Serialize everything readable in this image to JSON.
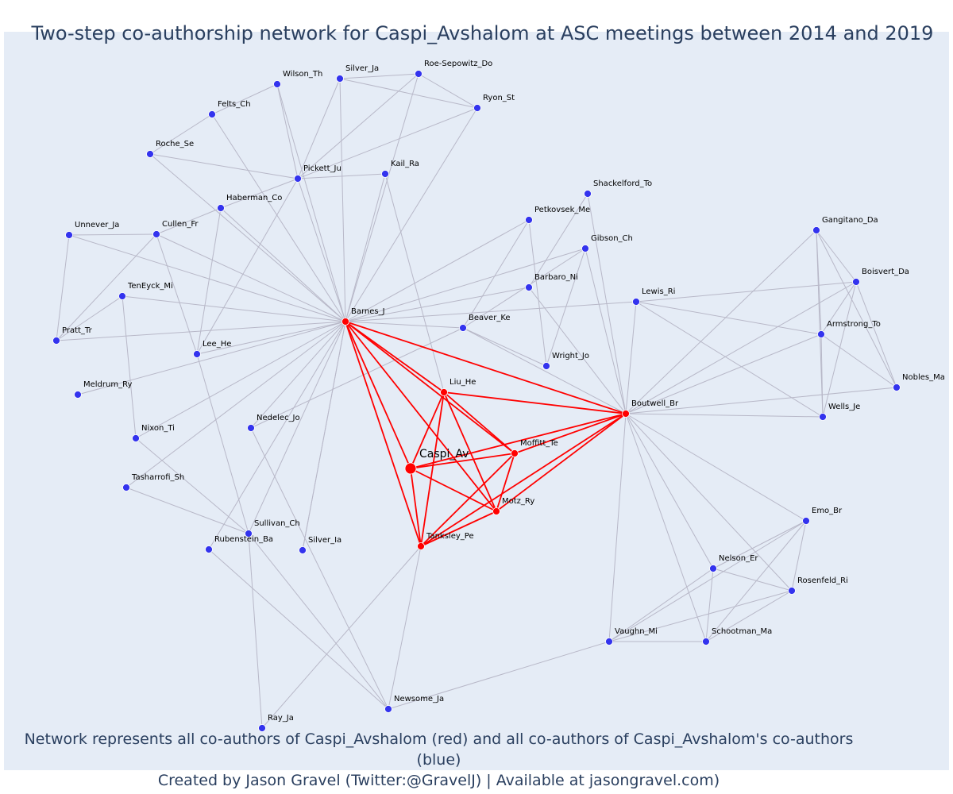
{
  "title": "Two-step co-authorship network for Caspi_Avshalom at ASC meetings between 2014 and 2019",
  "caption_line1": "Network represents all co-authors of Caspi_Avshalom (red) and all co-authors of Caspi_Avshalom's co-authors (blue)",
  "caption_line2": "Created by Jason Gravel (Twitter:@GravelJ) | Available at jasongravel.com)",
  "colors": {
    "background": "#e5ecf6",
    "coauthor": "#ff0000",
    "second_step": "#3333ee",
    "edge": "#b8b8c8",
    "title_text": "#2a3f5f"
  },
  "nodes": [
    {
      "id": "Caspi_Av",
      "label": "Caspi_Av",
      "group": "focal"
    },
    {
      "id": "Barnes_J",
      "label": "Barnes_J",
      "group": "coauthor"
    },
    {
      "id": "Liu_He",
      "label": "Liu_He",
      "group": "coauthor"
    },
    {
      "id": "Moffitt_Te",
      "label": "Moffitt_Te",
      "group": "coauthor"
    },
    {
      "id": "Motz_Ry",
      "label": "Motz_Ry",
      "group": "coauthor"
    },
    {
      "id": "Tanksley_Pe",
      "label": "Tanksley_Pe",
      "group": "coauthor"
    },
    {
      "id": "Boutwell_Br",
      "label": "Boutwell_Br",
      "group": "coauthor"
    },
    {
      "id": "Wilson_Th",
      "label": "Wilson_Th",
      "group": "second"
    },
    {
      "id": "Silver_Ja",
      "label": "Silver_Ja",
      "group": "second"
    },
    {
      "id": "Roe-Sepowitz_Do",
      "label": "Roe-Sepowitz_Do",
      "group": "second"
    },
    {
      "id": "Ryon_St",
      "label": "Ryon_St",
      "group": "second"
    },
    {
      "id": "Felts_Ch",
      "label": "Felts_Ch",
      "group": "second"
    },
    {
      "id": "Roche_Se",
      "label": "Roche_Se",
      "group": "second"
    },
    {
      "id": "Pickett_Ju",
      "label": "Pickett_Ju",
      "group": "second"
    },
    {
      "id": "Kail_Ra",
      "label": "Kail_Ra",
      "group": "second"
    },
    {
      "id": "Haberman_Co",
      "label": "Haberman_Co",
      "group": "second"
    },
    {
      "id": "Unnever_Ja",
      "label": "Unnever_Ja",
      "group": "second"
    },
    {
      "id": "Cullen_Fr",
      "label": "Cullen_Fr",
      "group": "second"
    },
    {
      "id": "TenEyck_Mi",
      "label": "TenEyck_Mi",
      "group": "second"
    },
    {
      "id": "Pratt_Tr",
      "label": "Pratt_Tr",
      "group": "second"
    },
    {
      "id": "Lee_He",
      "label": "Lee_He",
      "group": "second"
    },
    {
      "id": "Meldrum_Ry",
      "label": "Meldrum_Ry",
      "group": "second"
    },
    {
      "id": "Nixon_Ti",
      "label": "Nixon_Ti",
      "group": "second"
    },
    {
      "id": "Tasharrofi_Sh",
      "label": "Tasharrofi_Sh",
      "group": "second"
    },
    {
      "id": "Nedelec_Jo",
      "label": "Nedelec_Jo",
      "group": "second"
    },
    {
      "id": "Sullivan_Ch",
      "label": "Sullivan_Ch",
      "group": "second"
    },
    {
      "id": "Rubenstein_Ba",
      "label": "Rubenstein_Ba",
      "group": "second"
    },
    {
      "id": "Silver_Ia",
      "label": "Silver_Ia",
      "group": "second"
    },
    {
      "id": "Ray_Ja",
      "label": "Ray_Ja",
      "group": "second"
    },
    {
      "id": "Newsome_Ja",
      "label": "Newsome_Ja",
      "group": "second"
    },
    {
      "id": "Shackelford_To",
      "label": "Shackelford_To",
      "group": "second"
    },
    {
      "id": "Petkovsek_Me",
      "label": "Petkovsek_Me",
      "group": "second"
    },
    {
      "id": "Gibson_Ch",
      "label": "Gibson_Ch",
      "group": "second"
    },
    {
      "id": "Barbaro_Ni",
      "label": "Barbaro_Ni",
      "group": "second"
    },
    {
      "id": "Beaver_Ke",
      "label": "Beaver_Ke",
      "group": "second"
    },
    {
      "id": "Wright_Jo",
      "label": "Wright_Jo",
      "group": "second"
    },
    {
      "id": "Lewis_Ri",
      "label": "Lewis_Ri",
      "group": "second"
    },
    {
      "id": "Gangitano_Da",
      "label": "Gangitano_Da",
      "group": "second"
    },
    {
      "id": "Boisvert_Da",
      "label": "Boisvert_Da",
      "group": "second"
    },
    {
      "id": "Armstrong_To",
      "label": "Armstrong_To",
      "group": "second"
    },
    {
      "id": "Nobles_Ma",
      "label": "Nobles_Ma",
      "group": "second"
    },
    {
      "id": "Wells_Je",
      "label": "Wells_Je",
      "group": "second"
    },
    {
      "id": "Emo_Br",
      "label": "Emo_Br",
      "group": "second"
    },
    {
      "id": "Nelson_Er",
      "label": "Nelson_Er",
      "group": "second"
    },
    {
      "id": "Rosenfeld_Ri",
      "label": "Rosenfeld_Ri",
      "group": "second"
    },
    {
      "id": "Vaughn_Mi",
      "label": "Vaughn_Mi",
      "group": "second"
    },
    {
      "id": "Schootman_Ma",
      "label": "Schootman_Ma",
      "group": "second"
    }
  ],
  "edges": [
    [
      "Caspi_Av",
      "Barnes_J",
      "red"
    ],
    [
      "Caspi_Av",
      "Liu_He",
      "red"
    ],
    [
      "Caspi_Av",
      "Moffitt_Te",
      "red"
    ],
    [
      "Caspi_Av",
      "Motz_Ry",
      "red"
    ],
    [
      "Caspi_Av",
      "Tanksley_Pe",
      "red"
    ],
    [
      "Caspi_Av",
      "Boutwell_Br",
      "red"
    ],
    [
      "Barnes_J",
      "Liu_He",
      "red"
    ],
    [
      "Barnes_J",
      "Moffitt_Te",
      "red"
    ],
    [
      "Barnes_J",
      "Motz_Ry",
      "red"
    ],
    [
      "Barnes_J",
      "Tanksley_Pe",
      "red"
    ],
    [
      "Barnes_J",
      "Boutwell_Br",
      "red"
    ],
    [
      "Liu_He",
      "Moffitt_Te",
      "red"
    ],
    [
      "Liu_He",
      "Motz_Ry",
      "red"
    ],
    [
      "Liu_He",
      "Tanksley_Pe",
      "red"
    ],
    [
      "Liu_He",
      "Boutwell_Br",
      "red"
    ],
    [
      "Moffitt_Te",
      "Motz_Ry",
      "red"
    ],
    [
      "Moffitt_Te",
      "Tanksley_Pe",
      "red"
    ],
    [
      "Moffitt_Te",
      "Boutwell_Br",
      "red"
    ],
    [
      "Motz_Ry",
      "Tanksley_Pe",
      "red"
    ],
    [
      "Motz_Ry",
      "Boutwell_Br",
      "red"
    ],
    [
      "Tanksley_Pe",
      "Boutwell_Br",
      "red"
    ],
    [
      "Barnes_J",
      "Wilson_Th",
      "grey"
    ],
    [
      "Barnes_J",
      "Silver_Ja",
      "grey"
    ],
    [
      "Barnes_J",
      "Ryon_St",
      "grey"
    ],
    [
      "Barnes_J",
      "Felts_Ch",
      "grey"
    ],
    [
      "Barnes_J",
      "Roche_Se",
      "grey"
    ],
    [
      "Barnes_J",
      "Pickett_Ju",
      "grey"
    ],
    [
      "Barnes_J",
      "Kail_Ra",
      "grey"
    ],
    [
      "Barnes_J",
      "Haberman_Co",
      "grey"
    ],
    [
      "Barnes_J",
      "Unnever_Ja",
      "grey"
    ],
    [
      "Barnes_J",
      "Cullen_Fr",
      "grey"
    ],
    [
      "Barnes_J",
      "TenEyck_Mi",
      "grey"
    ],
    [
      "Barnes_J",
      "Pratt_Tr",
      "grey"
    ],
    [
      "Barnes_J",
      "Lee_He",
      "grey"
    ],
    [
      "Barnes_J",
      "Meldrum_Ry",
      "grey"
    ],
    [
      "Barnes_J",
      "Nixon_Ti",
      "grey"
    ],
    [
      "Barnes_J",
      "Tasharrofi_Sh",
      "grey"
    ],
    [
      "Barnes_J",
      "Nedelec_Jo",
      "grey"
    ],
    [
      "Barnes_J",
      "Sullivan_Ch",
      "grey"
    ],
    [
      "Barnes_J",
      "Rubenstein_Ba",
      "grey"
    ],
    [
      "Barnes_J",
      "Silver_Ia",
      "grey"
    ],
    [
      "Barnes_J",
      "Petkovsek_Me",
      "grey"
    ],
    [
      "Barnes_J",
      "Gibson_Ch",
      "grey"
    ],
    [
      "Barnes_J",
      "Barbaro_Ni",
      "grey"
    ],
    [
      "Barnes_J",
      "Beaver_Ke",
      "grey"
    ],
    [
      "Barnes_J",
      "Lewis_Ri",
      "grey"
    ],
    [
      "Wilson_Th",
      "Felts_Ch",
      "grey"
    ],
    [
      "Felts_Ch",
      "Roche_Se",
      "grey"
    ],
    [
      "Wilson_Th",
      "Pickett_Ju",
      "grey"
    ],
    [
      "Silver_Ja",
      "Roe-Sepowitz_Do",
      "grey"
    ],
    [
      "Silver_Ja",
      "Ryon_St",
      "grey"
    ],
    [
      "Roe-Sepowitz_Do",
      "Ryon_St",
      "grey"
    ],
    [
      "Silver_Ja",
      "Pickett_Ju",
      "grey"
    ],
    [
      "Roe-Sepowitz_Do",
      "Pickett_Ju",
      "grey"
    ],
    [
      "Roe-Sepowitz_Do",
      "Barnes_J",
      "grey"
    ],
    [
      "Ryon_St",
      "Pickett_Ju",
      "grey"
    ],
    [
      "Roche_Se",
      "Pickett_Ju",
      "grey"
    ],
    [
      "Pickett_Ju",
      "Kail_Ra",
      "grey"
    ],
    [
      "Pickett_Ju",
      "Lee_He",
      "grey"
    ],
    [
      "Haberman_Co",
      "Pickett_Ju",
      "grey"
    ],
    [
      "Haberman_Co",
      "Cullen_Fr",
      "grey"
    ],
    [
      "Haberman_Co",
      "Lee_He",
      "grey"
    ],
    [
      "Kail_Ra",
      "Liu_He",
      "grey"
    ],
    [
      "Unnever_Ja",
      "Pratt_Tr",
      "grey"
    ],
    [
      "Unnever_Ja",
      "Cullen_Fr",
      "grey"
    ],
    [
      "Cullen_Fr",
      "Pratt_Tr",
      "grey"
    ],
    [
      "Cullen_Fr",
      "Lee_He",
      "grey"
    ],
    [
      "TenEyck_Mi",
      "Pratt_Tr",
      "grey"
    ],
    [
      "TenEyck_Mi",
      "Nixon_Ti",
      "grey"
    ],
    [
      "Lee_He",
      "Sullivan_Ch",
      "grey"
    ],
    [
      "Nixon_Ti",
      "Sullivan_Ch",
      "grey"
    ],
    [
      "Tasharrofi_Sh",
      "Sullivan_Ch",
      "grey"
    ],
    [
      "Sullivan_Ch",
      "Ray_Ja",
      "grey"
    ],
    [
      "Sullivan_Ch",
      "Newsome_Ja",
      "grey"
    ],
    [
      "Rubenstein_Ba",
      "Newsome_Ja",
      "grey"
    ],
    [
      "Nedelec_Jo",
      "Newsome_Ja",
      "grey"
    ],
    [
      "Nedelec_Jo",
      "Beaver_Ke",
      "grey"
    ],
    [
      "Silver_Ia",
      "Barnes_J",
      "grey"
    ],
    [
      "Tanksley_Pe",
      "Ray_Ja",
      "grey"
    ],
    [
      "Tanksley_Pe",
      "Newsome_Ja",
      "grey"
    ],
    [
      "Newsome_Ja",
      "Vaughn_Mi",
      "grey"
    ],
    [
      "Shackelford_To",
      "Boutwell_Br",
      "grey"
    ],
    [
      "Shackelford_To",
      "Barbaro_Ni",
      "grey"
    ],
    [
      "Petkovsek_Me",
      "Beaver_Ke",
      "grey"
    ],
    [
      "Petkovsek_Me",
      "Wright_Jo",
      "grey"
    ],
    [
      "Gibson_Ch",
      "Beaver_Ke",
      "grey"
    ],
    [
      "Gibson_Ch",
      "Wright_Jo",
      "grey"
    ],
    [
      "Gibson_Ch",
      "Boutwell_Br",
      "grey"
    ],
    [
      "Barbaro_Ni",
      "Boutwell_Br",
      "grey"
    ],
    [
      "Beaver_Ke",
      "Wright_Jo",
      "grey"
    ],
    [
      "Beaver_Ke",
      "Boutwell_Br",
      "grey"
    ],
    [
      "Lewis_Ri",
      "Boutwell_Br",
      "grey"
    ],
    [
      "Lewis_Ri",
      "Boisvert_Da",
      "grey"
    ],
    [
      "Lewis_Ri",
      "Armstrong_To",
      "grey"
    ],
    [
      "Lewis_Ri",
      "Wells_Je",
      "grey"
    ],
    [
      "Gangitano_Da",
      "Boisvert_Da",
      "grey"
    ],
    [
      "Gangitano_Da",
      "Armstrong_To",
      "grey"
    ],
    [
      "Gangitano_Da",
      "Wells_Je",
      "grey"
    ],
    [
      "Gangitano_Da",
      "Nobles_Ma",
      "grey"
    ],
    [
      "Gangitano_Da",
      "Boutwell_Br",
      "grey"
    ],
    [
      "Boisvert_Da",
      "Armstrong_To",
      "grey"
    ],
    [
      "Boisvert_Da",
      "Wells_Je",
      "grey"
    ],
    [
      "Boisvert_Da",
      "Nobles_Ma",
      "grey"
    ],
    [
      "Boisvert_Da",
      "Boutwell_Br",
      "grey"
    ],
    [
      "Armstrong_To",
      "Nobles_Ma",
      "grey"
    ],
    [
      "Armstrong_To",
      "Wells_Je",
      "grey"
    ],
    [
      "Armstrong_To",
      "Boutwell_Br",
      "grey"
    ],
    [
      "Wells_Je",
      "Boutwell_Br",
      "grey"
    ],
    [
      "Nobles_Ma",
      "Boutwell_Br",
      "grey"
    ],
    [
      "Boutwell_Br",
      "Emo_Br",
      "grey"
    ],
    [
      "Boutwell_Br",
      "Nelson_Er",
      "grey"
    ],
    [
      "Boutwell_Br",
      "Rosenfeld_Ri",
      "grey"
    ],
    [
      "Boutwell_Br",
      "Vaughn_Mi",
      "grey"
    ],
    [
      "Boutwell_Br",
      "Schootman_Ma",
      "grey"
    ],
    [
      "Emo_Br",
      "Nelson_Er",
      "grey"
    ],
    [
      "Emo_Br",
      "Rosenfeld_Ri",
      "grey"
    ],
    [
      "Emo_Br",
      "Vaughn_Mi",
      "grey"
    ],
    [
      "Emo_Br",
      "Schootman_Ma",
      "grey"
    ],
    [
      "Nelson_Er",
      "Rosenfeld_Ri",
      "grey"
    ],
    [
      "Nelson_Er",
      "Vaughn_Mi",
      "grey"
    ],
    [
      "Nelson_Er",
      "Schootman_Ma",
      "grey"
    ],
    [
      "Rosenfeld_Ri",
      "Vaughn_Mi",
      "grey"
    ],
    [
      "Rosenfeld_Ri",
      "Schootman_Ma",
      "grey"
    ],
    [
      "Vaughn_Mi",
      "Schootman_Ma",
      "grey"
    ]
  ]
}
